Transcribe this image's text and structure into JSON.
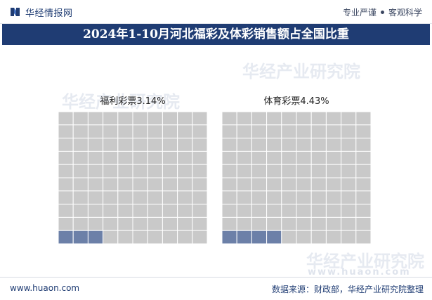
{
  "header": {
    "brand": "华经情报网",
    "tagline_left": "专业严谨",
    "tagline_right": "客观科学"
  },
  "title": "2024年1-10月河北福彩及体彩销售额占全国比重",
  "watermarks": {
    "main": "华经产业研究院",
    "url": "www.huaon.com"
  },
  "footer": {
    "url": "www.huaon.com",
    "source": "数据来源：财政部，华经产业研究院整理"
  },
  "colors": {
    "header_bar": "#1f3c73",
    "cell_empty": "#c9c9c9",
    "cell_filled": "#6c80a8",
    "grid_line": "#ffffff"
  },
  "chart_data": [
    {
      "type": "waffle",
      "name": "福利彩票",
      "label": "福利彩票3.14%",
      "value_percent": 3.14,
      "grid": [
        10,
        10
      ]
    },
    {
      "type": "waffle",
      "name": "体育彩票",
      "label": "体育彩票4.43%",
      "value_percent": 4.43,
      "grid": [
        10,
        10
      ]
    }
  ]
}
